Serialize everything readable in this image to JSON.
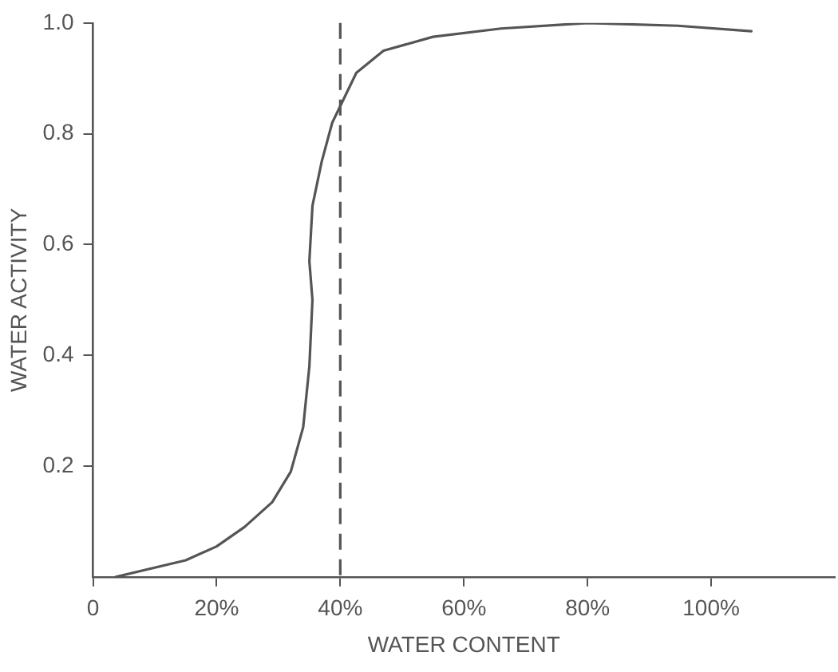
{
  "chart_data": {
    "type": "line",
    "xlabel": "WATER CONTENT",
    "ylabel": "WATER ACTIVITY",
    "xlim": [
      0,
      120
    ],
    "ylim": [
      0,
      1
    ],
    "xticks": [
      0,
      {
        "value": 20,
        "label": "20%"
      },
      {
        "value": 40,
        "label": "40%"
      },
      {
        "value": 60,
        "label": "60%"
      },
      {
        "value": 80,
        "label": "80%"
      },
      {
        "value": 100,
        "label": "100%"
      }
    ],
    "yticks": [
      0.2,
      0.4,
      0.6,
      0.8,
      {
        "value": 1,
        "label": "1.0"
      }
    ],
    "series": [
      {
        "color": "#555555",
        "x": [
          3.7,
          15,
          20,
          24.5,
          29,
          32,
          34,
          35,
          35.5,
          35,
          35.5,
          37,
          38.7,
          42.6,
          47,
          55,
          66,
          80,
          94.6,
          106.5
        ],
        "values": [
          0,
          0.03,
          0.055,
          0.09,
          0.135,
          0.19,
          0.27,
          0.38,
          0.5,
          0.57,
          0.67,
          0.75,
          0.82,
          0.91,
          0.95,
          0.975,
          0.99,
          1.0,
          0.995,
          0.985
        ]
      }
    ],
    "ref_lines": [
      {
        "axis": "x",
        "value": 40,
        "color": "#555555",
        "line_style": "dashed"
      }
    ],
    "grid": false,
    "legend": false,
    "marker": "none",
    "line_style": "solid"
  }
}
